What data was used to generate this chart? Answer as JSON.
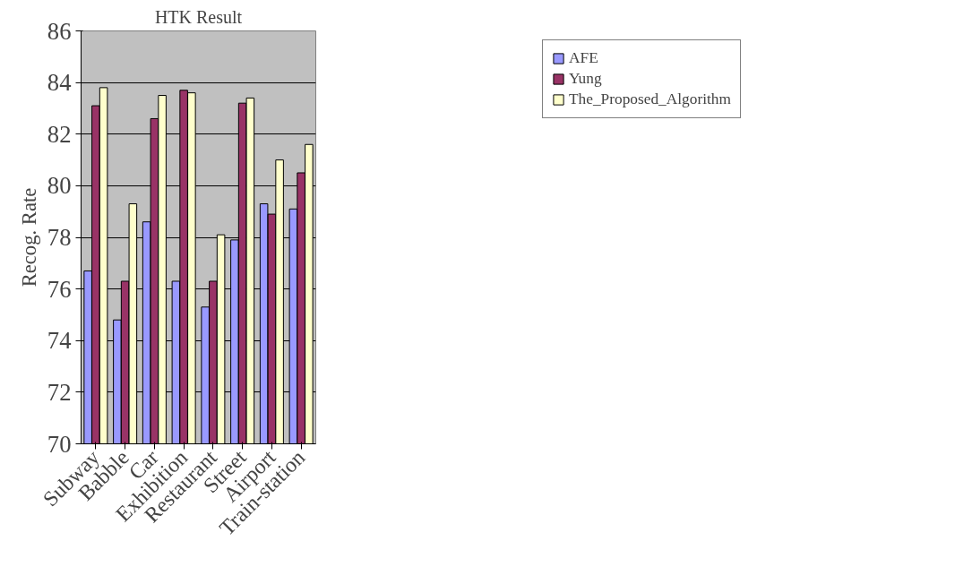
{
  "chart_data": {
    "type": "bar",
    "title": "HTK Result",
    "ylabel": "Recog. Rate",
    "categories": [
      "Subway",
      "Babble",
      "Car",
      "Exhibition",
      "Restaurant",
      "Street",
      "Airport",
      "Train-station"
    ],
    "series": [
      {
        "name": "AFE",
        "color": "#9999ff",
        "values": [
          76.7,
          74.8,
          78.6,
          76.3,
          75.3,
          77.9,
          79.3,
          79.1
        ]
      },
      {
        "name": "Yung",
        "color": "#993366",
        "values": [
          83.1,
          76.3,
          82.6,
          83.7,
          76.3,
          83.2,
          78.9,
          80.5
        ]
      },
      {
        "name": "The_Proposed_Algorithm",
        "color": "#ffffcc",
        "values": [
          83.8,
          79.3,
          83.5,
          83.6,
          78.1,
          83.4,
          81.0,
          81.6
        ]
      }
    ],
    "ylim": [
      70,
      86
    ],
    "yticks": [
      70,
      72,
      74,
      76,
      78,
      80,
      82,
      84,
      86
    ],
    "grid": "y",
    "legend": "top right"
  }
}
